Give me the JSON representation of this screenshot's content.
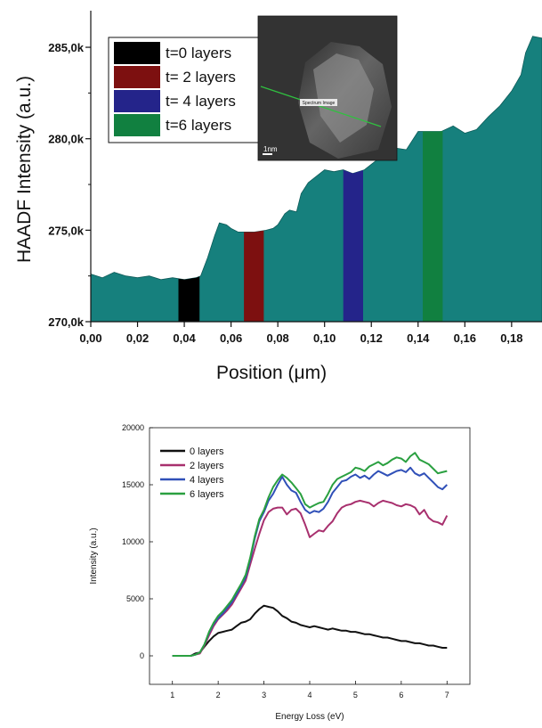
{
  "chart_data": [
    {
      "type": "area",
      "xlabel": "Position (μm)",
      "ylabel": "HAADF Intensity (a.u.)",
      "xlim": [
        0,
        0.193
      ],
      "ylim": [
        270000,
        287000
      ],
      "x_ticks": [
        "0,00",
        "0,02",
        "0,04",
        "0,06",
        "0,08",
        "0,10",
        "0,12",
        "0,14",
        "0,16",
        "0,18"
      ],
      "y_ticks": [
        "270,0k",
        "275,0k",
        "280,0k",
        "285,0k"
      ],
      "fill_color": "#16807d",
      "profile": {
        "x": [
          0.0,
          0.005,
          0.01,
          0.015,
          0.02,
          0.025,
          0.03,
          0.035,
          0.04,
          0.045,
          0.047,
          0.05,
          0.053,
          0.055,
          0.058,
          0.06,
          0.063,
          0.066,
          0.07,
          0.075,
          0.078,
          0.08,
          0.083,
          0.085,
          0.088,
          0.09,
          0.093,
          0.096,
          0.1,
          0.104,
          0.108,
          0.112,
          0.117,
          0.12,
          0.125,
          0.13,
          0.135,
          0.14,
          0.145,
          0.15,
          0.155,
          0.16,
          0.165,
          0.17,
          0.175,
          0.18,
          0.184,
          0.186,
          0.189,
          0.193
        ],
        "y": [
          272600,
          272400,
          272700,
          272500,
          272400,
          272500,
          272300,
          272400,
          272300,
          272400,
          272500,
          273500,
          274700,
          275400,
          275300,
          275100,
          274900,
          274900,
          274900,
          275000,
          275100,
          275300,
          275900,
          276100,
          276000,
          277000,
          277600,
          277900,
          278300,
          278200,
          278300,
          278100,
          278300,
          278600,
          279100,
          279500,
          279400,
          280400,
          280400,
          280400,
          280700,
          280300,
          280500,
          281200,
          281800,
          282600,
          283500,
          284700,
          285600,
          285500
        ]
      },
      "series": [
        {
          "name": "t=0 layers",
          "color": "#000000",
          "x_range": [
            0.0375,
            0.0465
          ]
        },
        {
          "name": "t= 2 layers",
          "color": "#7d1010",
          "x_range": [
            0.0655,
            0.074
          ]
        },
        {
          "name": "t= 4 layers",
          "color": "#24248a",
          "x_range": [
            0.108,
            0.1165
          ]
        },
        {
          "name": "t=6 layers",
          "color": "#118040",
          "x_range": [
            0.142,
            0.1505
          ]
        }
      ],
      "inset": {
        "scale_label": "1nm",
        "line_label": "Spectrum Image"
      }
    },
    {
      "type": "line",
      "xlabel": "Energy Loss (eV)",
      "ylabel": "Intensity (a.u.)",
      "xlim": [
        0.5,
        7.5
      ],
      "ylim": [
        -2500,
        20000
      ],
      "x_ticks": [
        "1",
        "2",
        "3",
        "4",
        "5",
        "6",
        "7"
      ],
      "y_ticks": [
        "0",
        "5000",
        "10000",
        "15000",
        "20000"
      ],
      "x": [
        1.0,
        1.4,
        1.5,
        1.6,
        1.7,
        1.8,
        1.9,
        2.0,
        2.1,
        2.2,
        2.3,
        2.4,
        2.5,
        2.6,
        2.7,
        2.8,
        2.9,
        3.0,
        3.1,
        3.2,
        3.3,
        3.4,
        3.5,
        3.6,
        3.7,
        3.8,
        3.9,
        4.0,
        4.1,
        4.2,
        4.3,
        4.4,
        4.5,
        4.6,
        4.7,
        4.8,
        4.9,
        5.0,
        5.1,
        5.2,
        5.3,
        5.4,
        5.5,
        5.6,
        5.7,
        5.8,
        5.9,
        6.0,
        6.1,
        6.2,
        6.3,
        6.4,
        6.5,
        6.6,
        6.7,
        6.8,
        6.9,
        7.0
      ],
      "series": [
        {
          "name": "0 layers",
          "color": "#111111",
          "values": [
            0,
            0,
            200,
            300,
            800,
            1300,
            1700,
            2000,
            2100,
            2200,
            2300,
            2600,
            2900,
            3000,
            3200,
            3700,
            4100,
            4400,
            4300,
            4200,
            3900,
            3500,
            3300,
            3000,
            2900,
            2700,
            2600,
            2500,
            2600,
            2500,
            2400,
            2300,
            2400,
            2300,
            2200,
            2200,
            2100,
            2100,
            2000,
            1900,
            1900,
            1800,
            1700,
            1600,
            1600,
            1500,
            1400,
            1300,
            1300,
            1200,
            1100,
            1100,
            1000,
            900,
            900,
            800,
            700,
            700
          ]
        },
        {
          "name": "2 layers",
          "color": "#a8306e",
          "values": [
            0,
            0,
            100,
            200,
            900,
            1800,
            2600,
            3200,
            3600,
            4000,
            4500,
            5200,
            5900,
            6600,
            8000,
            9400,
            10700,
            11900,
            12600,
            12900,
            13000,
            13000,
            12400,
            12800,
            12900,
            12500,
            11500,
            10400,
            10700,
            11000,
            10900,
            11400,
            11800,
            12500,
            13000,
            13200,
            13300,
            13500,
            13600,
            13500,
            13400,
            13100,
            13400,
            13600,
            13500,
            13400,
            13200,
            13100,
            13300,
            13200,
            13000,
            12400,
            12800,
            12100,
            11800,
            11700,
            11500,
            12300
          ]
        },
        {
          "name": "4 layers",
          "color": "#3050b8",
          "values": [
            0,
            0,
            100,
            300,
            1000,
            2000,
            2800,
            3300,
            3700,
            4200,
            4700,
            5400,
            6100,
            6900,
            8400,
            10300,
            11800,
            12600,
            13600,
            14200,
            15000,
            15700,
            15000,
            14500,
            14300,
            13500,
            12800,
            12500,
            12700,
            12600,
            12900,
            13500,
            14300,
            14800,
            15300,
            15400,
            15700,
            15900,
            15600,
            15800,
            15500,
            15900,
            16200,
            16000,
            15800,
            16000,
            16200,
            16300,
            16100,
            16500,
            16000,
            15800,
            16000,
            15600,
            15200,
            14800,
            14600,
            15000
          ]
        },
        {
          "name": "6 layers",
          "color": "#2aa040",
          "values": [
            0,
            0,
            100,
            300,
            1000,
            2100,
            2900,
            3500,
            3900,
            4400,
            4900,
            5600,
            6300,
            7100,
            8600,
            10500,
            12000,
            12800,
            13900,
            14800,
            15400,
            15900,
            15600,
            15200,
            14700,
            14200,
            13300,
            13000,
            13200,
            13400,
            13500,
            14200,
            15000,
            15500,
            15700,
            15900,
            16100,
            16500,
            16400,
            16200,
            16600,
            16800,
            17000,
            16700,
            16900,
            17200,
            17400,
            17300,
            17000,
            17500,
            17800,
            17200,
            17000,
            16800,
            16400,
            16000,
            16100,
            16200
          ]
        }
      ]
    }
  ]
}
